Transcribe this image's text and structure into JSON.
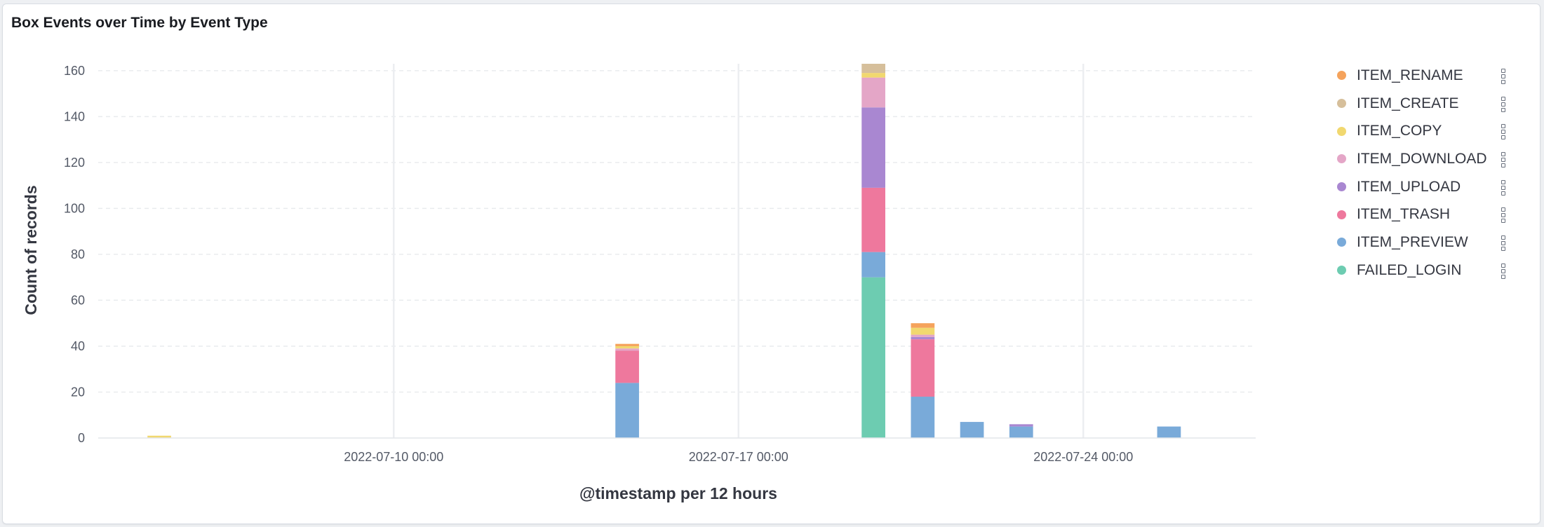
{
  "panel": {
    "title": "Box Events over Time by Event Type"
  },
  "chart_data": {
    "type": "bar",
    "stacked": true,
    "title": "Box Events over Time by Event Type",
    "xlabel": "@timestamp per 12 hours",
    "ylabel": "Count of records",
    "ylim": [
      0,
      163
    ],
    "yticks": [
      0,
      20,
      40,
      60,
      80,
      100,
      120,
      140,
      160
    ],
    "x_ticks": [
      "2022-07-10 00:00",
      "2022-07-17 00:00",
      "2022-07-24 00:00"
    ],
    "grid": "horizontal",
    "legend_position": "right",
    "series": [
      {
        "name": "FAILED_LOGIN",
        "color": "#6dccb1"
      },
      {
        "name": "ITEM_PREVIEW",
        "color": "#79aad9"
      },
      {
        "name": "ITEM_TRASH",
        "color": "#ee789d"
      },
      {
        "name": "ITEM_UPLOAD",
        "color": "#a987d1"
      },
      {
        "name": "ITEM_DOWNLOAD",
        "color": "#e4a6c7"
      },
      {
        "name": "ITEM_COPY",
        "color": "#f1d86f"
      },
      {
        "name": "ITEM_CREATE",
        "color": "#d6bf9b"
      },
      {
        "name": "ITEM_RENAME",
        "color": "#f5a35c"
      }
    ],
    "bars": [
      {
        "x": "2022-07-05 00:00",
        "values": {
          "ITEM_COPY": 1
        }
      },
      {
        "x": "2022-07-14 12:00",
        "values": {
          "ITEM_PREVIEW": 24,
          "ITEM_TRASH": 14,
          "ITEM_DOWNLOAD": 1,
          "ITEM_COPY": 1,
          "ITEM_RENAME": 1
        }
      },
      {
        "x": "2022-07-19 12:00",
        "values": {
          "FAILED_LOGIN": 70,
          "ITEM_PREVIEW": 11,
          "ITEM_TRASH": 28,
          "ITEM_UPLOAD": 35,
          "ITEM_DOWNLOAD": 13,
          "ITEM_COPY": 2,
          "ITEM_CREATE": 4
        }
      },
      {
        "x": "2022-07-20 12:00",
        "values": {
          "ITEM_PREVIEW": 18,
          "ITEM_TRASH": 25,
          "ITEM_UPLOAD": 1,
          "ITEM_DOWNLOAD": 1,
          "ITEM_COPY": 3,
          "ITEM_RENAME": 2
        }
      },
      {
        "x": "2022-07-21 12:00",
        "values": {
          "ITEM_PREVIEW": 7
        }
      },
      {
        "x": "2022-07-22 12:00",
        "values": {
          "ITEM_PREVIEW": 5,
          "ITEM_UPLOAD": 1
        }
      },
      {
        "x": "2022-07-25 12:00",
        "values": {
          "ITEM_PREVIEW": 5
        }
      }
    ]
  },
  "legend": {
    "items": [
      {
        "label": "ITEM_RENAME",
        "color": "#f5a35c"
      },
      {
        "label": "ITEM_CREATE",
        "color": "#d6bf9b"
      },
      {
        "label": "ITEM_COPY",
        "color": "#f1d86f"
      },
      {
        "label": "ITEM_DOWNLOAD",
        "color": "#e4a6c7"
      },
      {
        "label": "ITEM_UPLOAD",
        "color": "#a987d1"
      },
      {
        "label": "ITEM_TRASH",
        "color": "#ee789d"
      },
      {
        "label": "ITEM_PREVIEW",
        "color": "#79aad9"
      },
      {
        "label": "FAILED_LOGIN",
        "color": "#6dccb1"
      }
    ]
  }
}
